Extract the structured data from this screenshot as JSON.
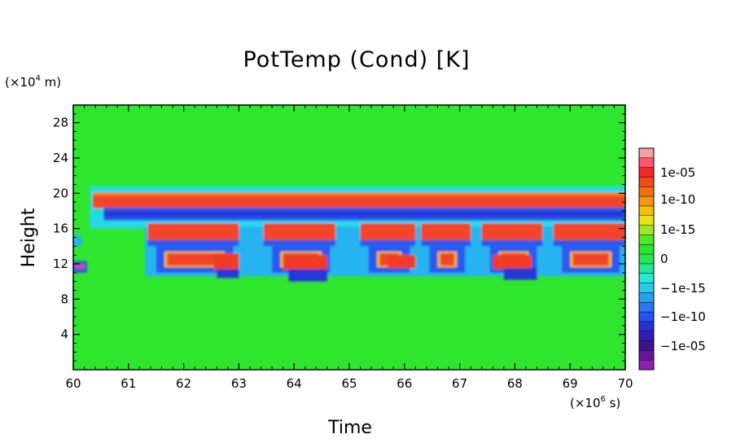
{
  "chart_data": {
    "type": "heatmap",
    "title": "PotTemp (Cond) [K]",
    "xlabel": "Time",
    "ylabel": "Height",
    "x_unit": {
      "prefix": "(×10",
      "exp": "6",
      "suffix": " s)"
    },
    "y_unit": {
      "prefix": "(×10",
      "exp": "4",
      "suffix": " m)"
    },
    "xlim": [
      60,
      70
    ],
    "ylim": [
      0,
      30
    ],
    "x_ticks": [
      "60",
      "61",
      "62",
      "63",
      "64",
      "65",
      "66",
      "67",
      "68",
      "69",
      "70"
    ],
    "y_ticks": [
      "4",
      "8",
      "12",
      "16",
      "20",
      "24",
      "28"
    ],
    "colorbar": {
      "labels": [
        "1e-05",
        "1e-10",
        "1e-15",
        "0",
        "−1e-15",
        "−1e-10",
        "−1e-05"
      ],
      "colors": [
        "#f4a0a8",
        "#f35a6c",
        "#f02828",
        "#f04b1e",
        "#f56e14",
        "#f5960f",
        "#f5be0f",
        "#e6e614",
        "#a0e628",
        "#50e628",
        "#28e628",
        "#28e650",
        "#28e696",
        "#28e6d2",
        "#28c8f0",
        "#28a0f0",
        "#2878f0",
        "#2850f0",
        "#2832d2",
        "#2d1eb4",
        "#3c148c",
        "#6414a0",
        "#8c1eb4"
      ]
    },
    "regions": [
      {
        "band": "upper_positive",
        "x_from": 60.35,
        "x_to": 70,
        "y_from": 18.3,
        "y_to": 20.0,
        "level": "1e-05"
      },
      {
        "band": "negative_layer",
        "x_from": 60.5,
        "x_to": 70,
        "y_from": 16.8,
        "y_to": 18.4,
        "level": "-1e-05"
      },
      {
        "band": "lower_positive",
        "x_from": 61.4,
        "x_to": 70,
        "y_from": 14.5,
        "y_to": 16.5,
        "level": "1e-05"
      },
      {
        "band": "lower_negative",
        "x_from": 61.8,
        "x_to": 70,
        "y_from": 11.0,
        "y_to": 14.3,
        "level": "-1e-05"
      }
    ]
  }
}
